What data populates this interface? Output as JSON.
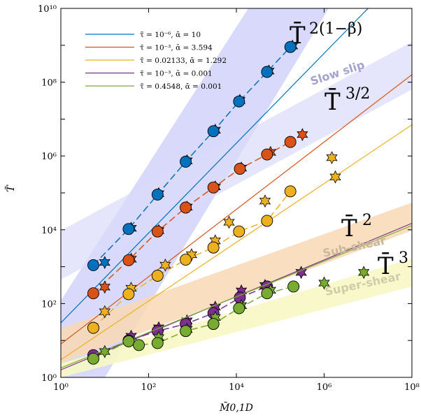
{
  "chart_data": {
    "type": "line",
    "title": "",
    "xlabel": "M̄0,1D",
    "ylabel": "T̄",
    "xscale": "log",
    "yscale": "log",
    "xlim": [
      1,
      100000000
    ],
    "ylim": [
      1,
      10000000000
    ],
    "grid": false,
    "legend_position": "top-left",
    "x_tick_labels": [
      "10⁰",
      "10²",
      "10⁴",
      "10⁶",
      "10⁸"
    ],
    "y_tick_labels": [
      "10⁰",
      "10²",
      "10⁴",
      "10⁶",
      "10⁸",
      "10¹⁰"
    ],
    "series": [
      {
        "name": "τ̄ = 10⁻⁶, ᾱ = 10",
        "color": "#0072BD",
        "line": [
          [
            1,
            30
          ],
          [
            10000000,
            10000000000
          ]
        ],
        "circles": [
          [
            5.5,
            1100
          ],
          [
            35,
            10500
          ],
          [
            160,
            90000
          ],
          [
            700,
            700000
          ],
          [
            3000,
            4700000
          ],
          [
            11500,
            30000000
          ],
          [
            50000,
            190000000
          ],
          [
            170000,
            900000000
          ]
        ],
        "stars": [
          [
            10,
            1300
          ],
          [
            40,
            11000
          ],
          [
            170,
            95000
          ],
          [
            750,
            740000
          ],
          [
            3300,
            5000000
          ],
          [
            12000,
            32000000
          ],
          [
            55000,
            200000000
          ],
          [
            190000,
            950000000
          ]
        ]
      },
      {
        "name": "τ̄ = 10⁻³, ᾱ = 3.594",
        "color": "#D95319",
        "line": [
          [
            1,
            8
          ],
          [
            100000000,
            160000000
          ]
        ],
        "circles": [
          [
            5.5,
            190
          ],
          [
            35,
            1500
          ],
          [
            160,
            9000
          ],
          [
            700,
            40000
          ],
          [
            3000,
            140000
          ],
          [
            12000,
            450000
          ],
          [
            50000,
            1100000
          ],
          [
            170000,
            2400000
          ]
        ],
        "stars": [
          [
            10,
            280
          ],
          [
            40,
            1600
          ],
          [
            170,
            9500
          ],
          [
            750,
            41000
          ],
          [
            3300,
            145000
          ],
          [
            13000,
            470000
          ],
          [
            60000,
            1250000
          ],
          [
            320000,
            3800000
          ]
        ]
      },
      {
        "name": "τ̄ = 0.02133, ᾱ = 1.292",
        "color": "#EDB120",
        "line": [
          [
            1,
            3
          ],
          [
            100000000,
            7000000
          ]
        ],
        "circles": [
          [
            5.5,
            22
          ],
          [
            35,
            180
          ],
          [
            160,
            570
          ],
          [
            700,
            1550
          ],
          [
            3000,
            3300
          ],
          [
            11500,
            9000
          ],
          [
            50000,
            17500
          ],
          [
            170000,
            110000
          ]
        ],
        "stars": [
          [
            10,
            60
          ],
          [
            40,
            260
          ],
          [
            240,
            1100
          ],
          [
            950,
            2100
          ],
          [
            3300,
            5000
          ],
          [
            6800,
            16000
          ],
          [
            45000,
            60000
          ],
          [
            1500000,
            900000
          ],
          [
            1800000,
            270000
          ]
        ]
      },
      {
        "name": "τ̄ = 10⁻³, ᾱ = 0.001",
        "color": "#7E2F8E",
        "line": [
          [
            1,
            1.6
          ],
          [
            100000000,
            15000
          ]
        ],
        "circles": [
          [
            5.5,
            4
          ],
          [
            35,
            10
          ],
          [
            160,
            18
          ],
          [
            700,
            28
          ],
          [
            3000,
            55
          ],
          [
            12000,
            145
          ],
          [
            50000,
            290
          ]
        ],
        "stars": [
          [
            40,
            13
          ],
          [
            170,
            22
          ],
          [
            750,
            34
          ],
          [
            3300,
            80
          ],
          [
            13000,
            220
          ],
          [
            45000,
            310
          ],
          [
            300000,
            700
          ]
        ]
      },
      {
        "name": "τ̄ = 0.4548, ᾱ = 0.001",
        "color": "#77AC30",
        "line": [
          [
            1,
            1.8
          ],
          [
            100000000,
            13000
          ]
        ],
        "circles": [
          [
            5.5,
            3.2
          ],
          [
            35,
            9.5
          ],
          [
            60,
            7.5
          ],
          [
            160,
            8.5
          ],
          [
            700,
            18
          ],
          [
            3000,
            28
          ],
          [
            11500,
            75
          ],
          [
            50000,
            190
          ],
          [
            200000,
            290
          ]
        ],
        "stars": [
          [
            10,
            5
          ],
          [
            170,
            12
          ],
          [
            750,
            20
          ],
          [
            3300,
            42
          ],
          [
            13000,
            88
          ],
          [
            60000,
            230
          ],
          [
            1000000,
            360
          ],
          [
            8000000,
            700
          ]
        ]
      }
    ],
    "annotations": {
      "scalings": [
        {
          "base": "T̄",
          "exponent": "2(1−β)"
        },
        {
          "base": "T̄",
          "exponent": "3/2"
        },
        {
          "base": "T̄",
          "exponent": "2"
        },
        {
          "base": "T̄",
          "exponent": "3"
        }
      ],
      "regions": [
        {
          "label": "Slow slip",
          "color": "#9B9BCF"
        },
        {
          "label": "Sub-shear",
          "color": "#C7B39A"
        },
        {
          "label": "Super-shear",
          "color": "#C9C9A6"
        }
      ]
    }
  }
}
